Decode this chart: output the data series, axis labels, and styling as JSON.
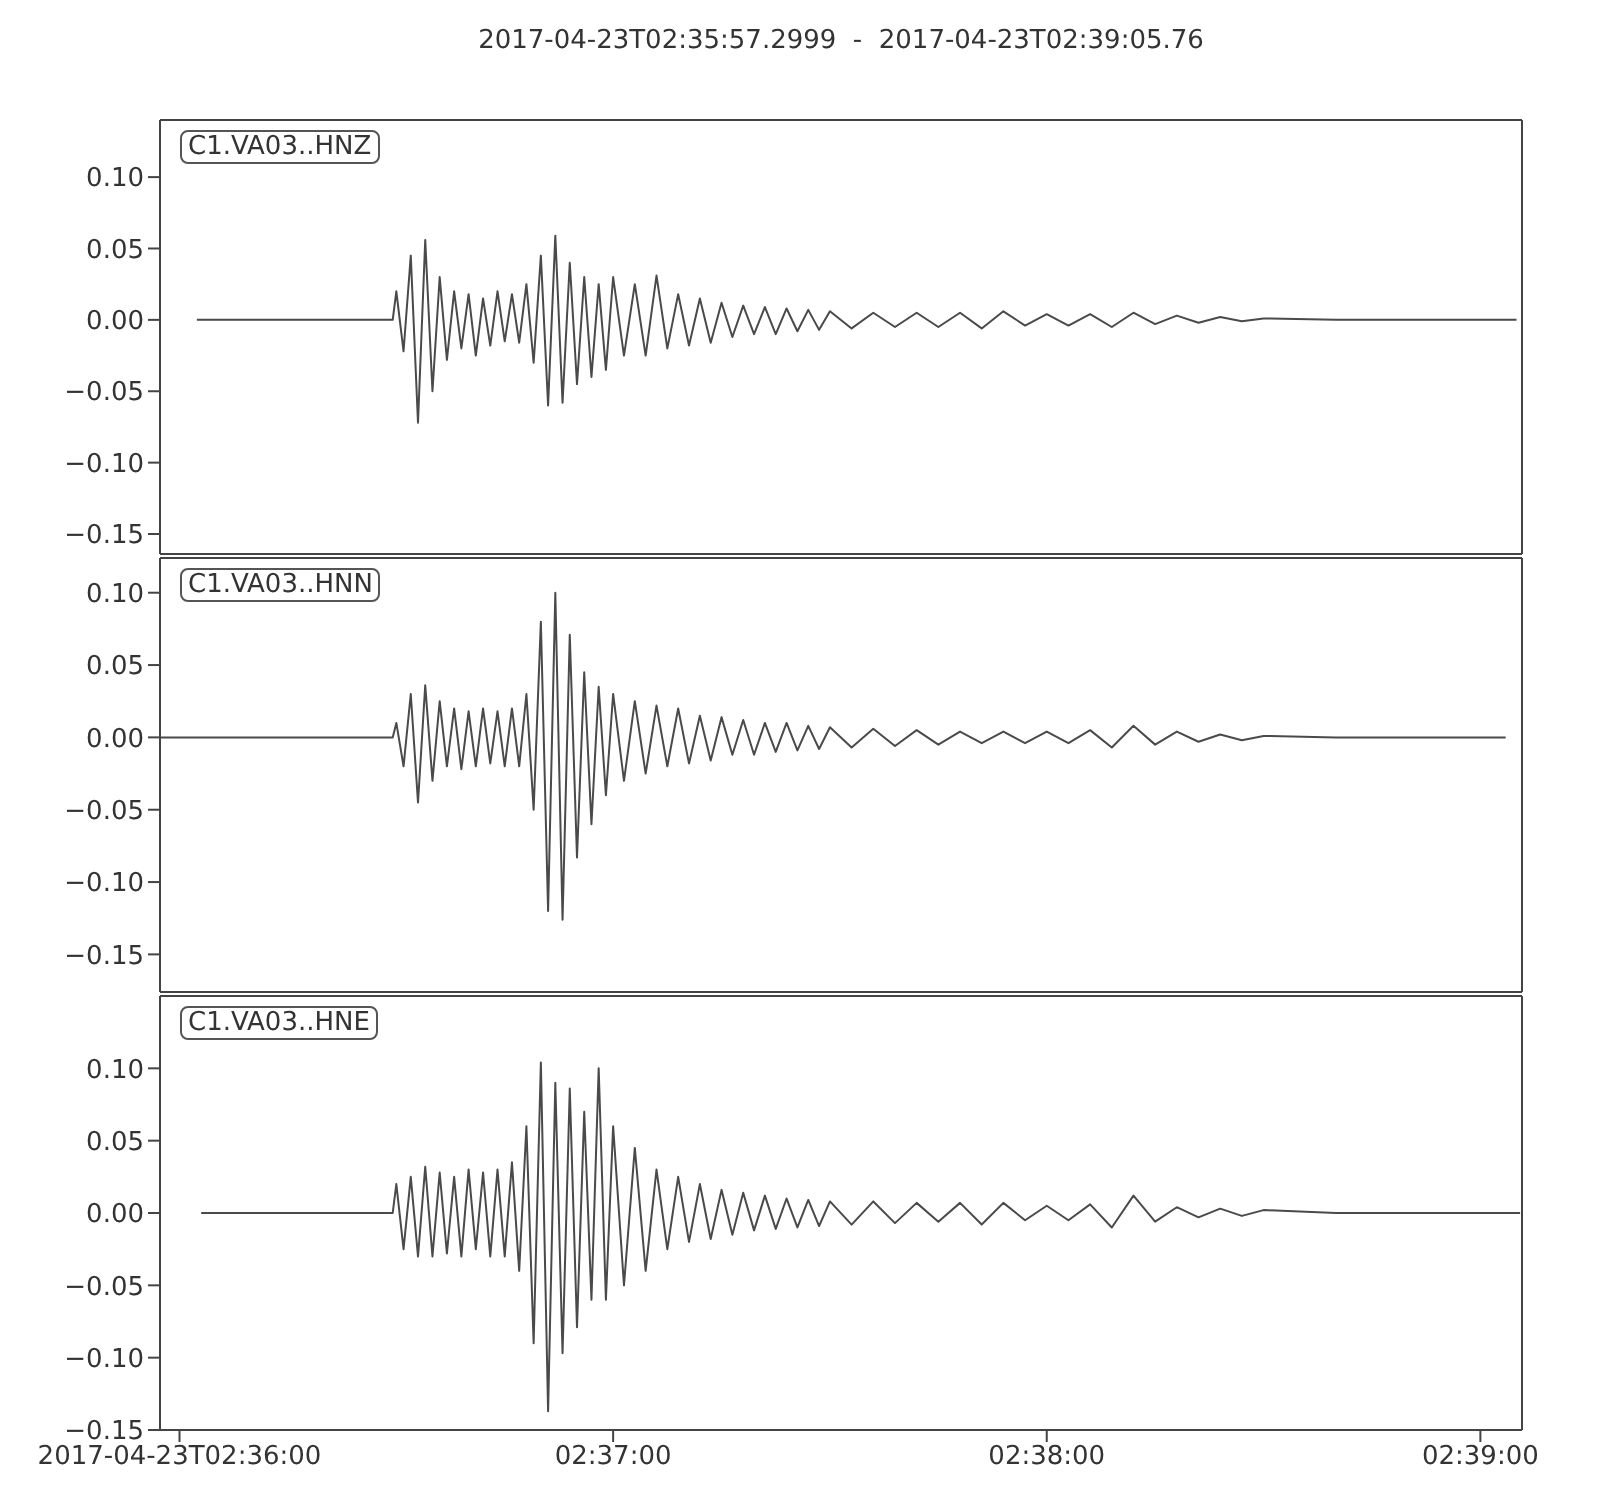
{
  "chart_data": [
    {
      "type": "line",
      "title": "2017-04-23T02:35:57.2999  -  2017-04-23T02:39:05.76",
      "annotations": [
        "C1.VA03..HNZ"
      ],
      "color": "#4a4a4a",
      "tick_labels": "y",
      "xlim": [
        "2017-04-23T02:35:57.2999",
        "2017-04-23T02:39:05.76"
      ],
      "xticks": [
        {
          "value": "2017-04-23T02:36:00",
          "label": null
        },
        {
          "value": "2017-04-23T02:37:00",
          "label": null
        },
        {
          "value": "2017-04-23T02:38:00",
          "label": null
        },
        {
          "value": "2017-04-23T02:39:00",
          "label": null
        }
      ],
      "ylim": [
        -0.164,
        0.14
      ],
      "yticks": [
        {
          "value": -0.15,
          "label": "−0.15"
        },
        {
          "value": -0.1,
          "label": "−0.10"
        },
        {
          "value": -0.05,
          "label": "−0.05"
        },
        {
          "value": 0,
          "label": "0.00"
        },
        {
          "value": 0.05,
          "label": "0.05"
        },
        {
          "value": 0.1,
          "label": "0.10"
        }
      ],
      "x": [
        "2017-04-23T02:36:02.4",
        "2017-04-23T02:36:29.5",
        "2017-04-23T02:36:30",
        "2017-04-23T02:36:31",
        "2017-04-23T02:36:32",
        "2017-04-23T02:36:33",
        "2017-04-23T02:36:34",
        "2017-04-23T02:36:35",
        "2017-04-23T02:36:36",
        "2017-04-23T02:36:37",
        "2017-04-23T02:36:38",
        "2017-04-23T02:36:39",
        "2017-04-23T02:36:40",
        "2017-04-23T02:36:41",
        "2017-04-23T02:36:42",
        "2017-04-23T02:36:43",
        "2017-04-23T02:36:44",
        "2017-04-23T02:36:45",
        "2017-04-23T02:36:46",
        "2017-04-23T02:36:47",
        "2017-04-23T02:36:48",
        "2017-04-23T02:36:49",
        "2017-04-23T02:36:50",
        "2017-04-23T02:36:51",
        "2017-04-23T02:36:52",
        "2017-04-23T02:36:53",
        "2017-04-23T02:36:54",
        "2017-04-23T02:36:55",
        "2017-04-23T02:36:56",
        "2017-04-23T02:36:57",
        "2017-04-23T02:36:58",
        "2017-04-23T02:36:59",
        "2017-04-23T02:37:00",
        "2017-04-23T02:37:01.5",
        "2017-04-23T02:37:03",
        "2017-04-23T02:37:04.5",
        "2017-04-23T02:37:06",
        "2017-04-23T02:37:07.5",
        "2017-04-23T02:37:09",
        "2017-04-23T02:37:10.5",
        "2017-04-23T02:37:12",
        "2017-04-23T02:37:13.5",
        "2017-04-23T02:37:15",
        "2017-04-23T02:37:16.5",
        "2017-04-23T02:37:18",
        "2017-04-23T02:37:19.5",
        "2017-04-23T02:37:21",
        "2017-04-23T02:37:22.5",
        "2017-04-23T02:37:24",
        "2017-04-23T02:37:25.5",
        "2017-04-23T02:37:27",
        "2017-04-23T02:37:28.5",
        "2017-04-23T02:37:30",
        "2017-04-23T02:37:33",
        "2017-04-23T02:37:36",
        "2017-04-23T02:37:39",
        "2017-04-23T02:37:42",
        "2017-04-23T02:37:45",
        "2017-04-23T02:37:48",
        "2017-04-23T02:37:51",
        "2017-04-23T02:37:54",
        "2017-04-23T02:37:57",
        "2017-04-23T02:38:00",
        "2017-04-23T02:38:03",
        "2017-04-23T02:38:06",
        "2017-04-23T02:38:09",
        "2017-04-23T02:38:12",
        "2017-04-23T02:38:15",
        "2017-04-23T02:38:18",
        "2017-04-23T02:38:21",
        "2017-04-23T02:38:24",
        "2017-04-23T02:38:27",
        "2017-04-23T02:38:30",
        "2017-04-23T02:38:40",
        "2017-04-23T02:39:05"
      ],
      "values": [
        0,
        0,
        0.02,
        -0.022,
        0.045,
        -0.072,
        0.056,
        -0.05,
        0.03,
        -0.028,
        0.02,
        -0.02,
        0.018,
        -0.025,
        0.015,
        -0.018,
        0.02,
        -0.015,
        0.018,
        -0.016,
        0.025,
        -0.03,
        0.045,
        -0.06,
        0.059,
        -0.058,
        0.04,
        -0.045,
        0.03,
        -0.04,
        0.025,
        -0.035,
        0.03,
        -0.025,
        0.025,
        -0.025,
        0.031,
        -0.02,
        0.018,
        -0.018,
        0.015,
        -0.016,
        0.012,
        -0.012,
        0.01,
        -0.01,
        0.009,
        -0.01,
        0.008,
        -0.008,
        0.007,
        -0.007,
        0.006,
        -0.006,
        0.005,
        -0.005,
        0.005,
        -0.005,
        0.005,
        -0.006,
        0.006,
        -0.004,
        0.004,
        -0.004,
        0.004,
        -0.005,
        0.005,
        -0.003,
        0.003,
        -0.002,
        0.002,
        -0.001,
        0.001,
        0,
        0
      ]
    },
    {
      "type": "line",
      "annotations": [
        "C1.VA03..HNN"
      ],
      "color": "#4a4a4a",
      "tick_labels": "y",
      "xlim": [
        "2017-04-23T02:35:57.2999",
        "2017-04-23T02:39:05.76"
      ],
      "xticks": [
        {
          "value": "2017-04-23T02:36:00",
          "label": null
        },
        {
          "value": "2017-04-23T02:37:00",
          "label": null
        },
        {
          "value": "2017-04-23T02:38:00",
          "label": null
        },
        {
          "value": "2017-04-23T02:39:00",
          "label": null
        }
      ],
      "ylim": [
        -0.176,
        0.124
      ],
      "yticks": [
        {
          "value": -0.15,
          "label": "−0.15"
        },
        {
          "value": -0.1,
          "label": "−0.10"
        },
        {
          "value": -0.05,
          "label": "−0.05"
        },
        {
          "value": 0,
          "label": "0.00"
        },
        {
          "value": 0.05,
          "label": "0.05"
        },
        {
          "value": 0.1,
          "label": "0.10"
        }
      ],
      "x": [
        "2017-04-23T02:35:57.3",
        "2017-04-23T02:36:29.5",
        "2017-04-23T02:36:30",
        "2017-04-23T02:36:31",
        "2017-04-23T02:36:32",
        "2017-04-23T02:36:33",
        "2017-04-23T02:36:34",
        "2017-04-23T02:36:35",
        "2017-04-23T02:36:36",
        "2017-04-23T02:36:37",
        "2017-04-23T02:36:38",
        "2017-04-23T02:36:39",
        "2017-04-23T02:36:40",
        "2017-04-23T02:36:41",
        "2017-04-23T02:36:42",
        "2017-04-23T02:36:43",
        "2017-04-23T02:36:44",
        "2017-04-23T02:36:45",
        "2017-04-23T02:36:46",
        "2017-04-23T02:36:47",
        "2017-04-23T02:36:48",
        "2017-04-23T02:36:49",
        "2017-04-23T02:36:50",
        "2017-04-23T02:36:51",
        "2017-04-23T02:36:52",
        "2017-04-23T02:36:53",
        "2017-04-23T02:36:54",
        "2017-04-23T02:36:55",
        "2017-04-23T02:36:56",
        "2017-04-23T02:36:57",
        "2017-04-23T02:36:58",
        "2017-04-23T02:36:59",
        "2017-04-23T02:37:00",
        "2017-04-23T02:37:01.5",
        "2017-04-23T02:37:03",
        "2017-04-23T02:37:04.5",
        "2017-04-23T02:37:06",
        "2017-04-23T02:37:07.5",
        "2017-04-23T02:37:09",
        "2017-04-23T02:37:10.5",
        "2017-04-23T02:37:12",
        "2017-04-23T02:37:13.5",
        "2017-04-23T02:37:15",
        "2017-04-23T02:37:16.5",
        "2017-04-23T02:37:18",
        "2017-04-23T02:37:19.5",
        "2017-04-23T02:37:21",
        "2017-04-23T02:37:22.5",
        "2017-04-23T02:37:24",
        "2017-04-23T02:37:25.5",
        "2017-04-23T02:37:27",
        "2017-04-23T02:37:28.5",
        "2017-04-23T02:37:30",
        "2017-04-23T02:37:33",
        "2017-04-23T02:37:36",
        "2017-04-23T02:37:39",
        "2017-04-23T02:37:42",
        "2017-04-23T02:37:45",
        "2017-04-23T02:37:48",
        "2017-04-23T02:37:51",
        "2017-04-23T02:37:54",
        "2017-04-23T02:37:57",
        "2017-04-23T02:38:00",
        "2017-04-23T02:38:03",
        "2017-04-23T02:38:06",
        "2017-04-23T02:38:09",
        "2017-04-23T02:38:12",
        "2017-04-23T02:38:15",
        "2017-04-23T02:38:18",
        "2017-04-23T02:38:21",
        "2017-04-23T02:38:24",
        "2017-04-23T02:38:27",
        "2017-04-23T02:38:30",
        "2017-04-23T02:38:40",
        "2017-04-23T02:39:03.5"
      ],
      "values": [
        0,
        0,
        0.01,
        -0.02,
        0.03,
        -0.045,
        0.036,
        -0.03,
        0.025,
        -0.02,
        0.02,
        -0.022,
        0.018,
        -0.02,
        0.02,
        -0.018,
        0.018,
        -0.02,
        0.02,
        -0.02,
        0.03,
        -0.05,
        0.08,
        -0.12,
        0.1,
        -0.126,
        0.071,
        -0.083,
        0.045,
        -0.06,
        0.035,
        -0.04,
        0.03,
        -0.03,
        0.025,
        -0.025,
        0.022,
        -0.02,
        0.02,
        -0.018,
        0.015,
        -0.016,
        0.014,
        -0.012,
        0.012,
        -0.012,
        0.01,
        -0.01,
        0.01,
        -0.009,
        0.008,
        -0.008,
        0.007,
        -0.007,
        0.006,
        -0.006,
        0.005,
        -0.005,
        0.004,
        -0.004,
        0.004,
        -0.004,
        0.004,
        -0.004,
        0.005,
        -0.007,
        0.008,
        -0.005,
        0.004,
        -0.003,
        0.002,
        -0.002,
        0.001,
        0,
        0
      ]
    },
    {
      "type": "line",
      "annotations": [
        "C1.VA03..HNE"
      ],
      "color": "#4a4a4a",
      "xlim": [
        "2017-04-23T02:35:57.2999",
        "2017-04-23T02:39:05.76"
      ],
      "xticks": [
        "2017-04-23T02:36:00",
        {
          "value": "2017-04-23T02:37:00",
          "label": "02:37:00"
        },
        {
          "value": "2017-04-23T02:38:00",
          "label": "02:38:00"
        },
        {
          "value": "2017-04-23T02:39:00",
          "label": "02:39:00"
        }
      ],
      "ylim": [
        -0.15,
        0.15
      ],
      "yticks": [
        {
          "value": -0.15,
          "label": "−0.15"
        },
        {
          "value": -0.1,
          "label": "−0.10"
        },
        {
          "value": -0.05,
          "label": "−0.05"
        },
        {
          "value": 0,
          "label": "0.00"
        },
        {
          "value": 0.05,
          "label": "0.05"
        },
        {
          "value": 0.1,
          "label": "0.10"
        }
      ],
      "x": [
        "2017-04-23T02:36:03",
        "2017-04-23T02:36:29.5",
        "2017-04-23T02:36:30",
        "2017-04-23T02:36:31",
        "2017-04-23T02:36:32",
        "2017-04-23T02:36:33",
        "2017-04-23T02:36:34",
        "2017-04-23T02:36:35",
        "2017-04-23T02:36:36",
        "2017-04-23T02:36:37",
        "2017-04-23T02:36:38",
        "2017-04-23T02:36:39",
        "2017-04-23T02:36:40",
        "2017-04-23T02:36:41",
        "2017-04-23T02:36:42",
        "2017-04-23T02:36:43",
        "2017-04-23T02:36:44",
        "2017-04-23T02:36:45",
        "2017-04-23T02:36:46",
        "2017-04-23T02:36:47",
        "2017-04-23T02:36:48",
        "2017-04-23T02:36:49",
        "2017-04-23T02:36:50",
        "2017-04-23T02:36:51",
        "2017-04-23T02:36:52",
        "2017-04-23T02:36:53",
        "2017-04-23T02:36:54",
        "2017-04-23T02:36:55",
        "2017-04-23T02:36:56",
        "2017-04-23T02:36:57",
        "2017-04-23T02:36:58",
        "2017-04-23T02:36:59",
        "2017-04-23T02:37:00",
        "2017-04-23T02:37:01.5",
        "2017-04-23T02:37:03",
        "2017-04-23T02:37:04.5",
        "2017-04-23T02:37:06",
        "2017-04-23T02:37:07.5",
        "2017-04-23T02:37:09",
        "2017-04-23T02:37:10.5",
        "2017-04-23T02:37:12",
        "2017-04-23T02:37:13.5",
        "2017-04-23T02:37:15",
        "2017-04-23T02:37:16.5",
        "2017-04-23T02:37:18",
        "2017-04-23T02:37:19.5",
        "2017-04-23T02:37:21",
        "2017-04-23T02:37:22.5",
        "2017-04-23T02:37:24",
        "2017-04-23T02:37:25.5",
        "2017-04-23T02:37:27",
        "2017-04-23T02:37:28.5",
        "2017-04-23T02:37:30",
        "2017-04-23T02:37:33",
        "2017-04-23T02:37:36",
        "2017-04-23T02:37:39",
        "2017-04-23T02:37:42",
        "2017-04-23T02:37:45",
        "2017-04-23T02:37:48",
        "2017-04-23T02:37:51",
        "2017-04-23T02:37:54",
        "2017-04-23T02:37:57",
        "2017-04-23T02:38:00",
        "2017-04-23T02:38:03",
        "2017-04-23T02:38:06",
        "2017-04-23T02:38:09",
        "2017-04-23T02:38:12",
        "2017-04-23T02:38:15",
        "2017-04-23T02:38:18",
        "2017-04-23T02:38:21",
        "2017-04-23T02:38:24",
        "2017-04-23T02:38:27",
        "2017-04-23T02:38:30",
        "2017-04-23T02:38:40",
        "2017-04-23T02:39:05.5"
      ],
      "values": [
        0,
        0,
        0.02,
        -0.025,
        0.025,
        -0.03,
        0.032,
        -0.03,
        0.028,
        -0.028,
        0.025,
        -0.03,
        0.03,
        -0.025,
        0.028,
        -0.03,
        0.03,
        -0.03,
        0.035,
        -0.04,
        0.06,
        -0.09,
        0.104,
        -0.137,
        0.09,
        -0.097,
        0.086,
        -0.079,
        0.07,
        -0.06,
        0.1,
        -0.06,
        0.06,
        -0.05,
        0.045,
        -0.04,
        0.03,
        -0.025,
        0.025,
        -0.02,
        0.02,
        -0.018,
        0.016,
        -0.015,
        0.014,
        -0.012,
        0.012,
        -0.011,
        0.01,
        -0.01,
        0.009,
        -0.009,
        0.008,
        -0.008,
        0.008,
        -0.007,
        0.007,
        -0.006,
        0.007,
        -0.008,
        0.007,
        -0.005,
        0.005,
        -0.005,
        0.006,
        -0.01,
        0.012,
        -0.006,
        0.004,
        -0.003,
        0.003,
        -0.002,
        0.002,
        0,
        0
      ]
    }
  ]
}
